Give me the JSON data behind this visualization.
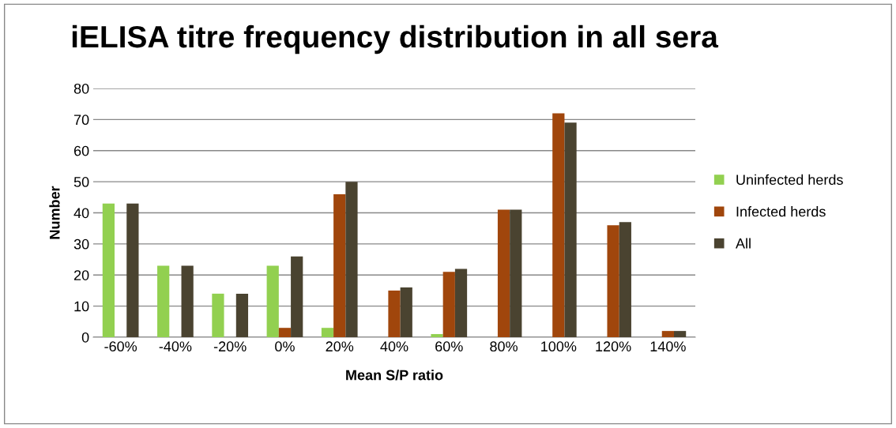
{
  "chart_data": {
    "type": "bar",
    "title": "iELISA titre frequency distribution in all sera",
    "xlabel": "Mean S/P ratio",
    "ylabel": "Number",
    "categories": [
      "-60%",
      "-40%",
      "-20%",
      "0%",
      "20%",
      "40%",
      "60%",
      "80%",
      "100%",
      "120%",
      "140%"
    ],
    "series": [
      {
        "name": "Uninfected herds",
        "color": "#92d050",
        "values": [
          43,
          23,
          14,
          23,
          3,
          0,
          1,
          0,
          0,
          0,
          0
        ]
      },
      {
        "name": "Infected herds",
        "color": "#a0460c",
        "values": [
          0,
          0,
          0,
          3,
          46,
          15,
          21,
          41,
          72,
          36,
          2
        ]
      },
      {
        "name": "All",
        "color": "#4a4330",
        "values": [
          43,
          23,
          14,
          26,
          50,
          16,
          22,
          41,
          69,
          37,
          2
        ]
      }
    ],
    "ylim": [
      0,
      80
    ],
    "yticks": [
      0,
      10,
      20,
      30,
      40,
      50,
      60,
      70,
      80
    ],
    "grid": "y",
    "legend": "right"
  }
}
